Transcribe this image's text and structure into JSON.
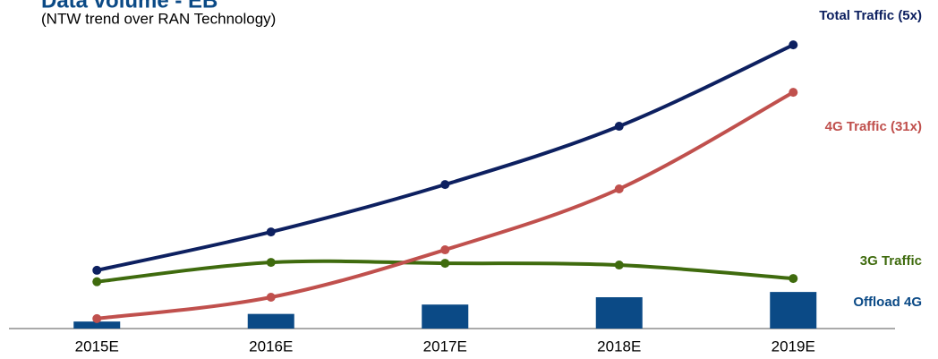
{
  "chart_data": {
    "type": "line",
    "title": "Data volume - EB",
    "subtitle": "(NTW trend over RAN Technology)",
    "categories": [
      "2015E",
      "2016E",
      "2017E",
      "2018E",
      "2019E"
    ],
    "ylim": [
      0,
      100
    ],
    "series": [
      {
        "name": "Offload 4G",
        "type": "bar",
        "color": "#0b4a86",
        "values": [
          2.4,
          5,
          8.2,
          10.7,
          12.5
        ]
      },
      {
        "name": "3G Traffic",
        "type": "line",
        "color": "#3f6b0e",
        "values": [
          16,
          22.6,
          22.3,
          21.7,
          17.1
        ]
      },
      {
        "name": "4G Traffic (31x)",
        "type": "line",
        "color": "#c0504d",
        "values": [
          3.4,
          10.7,
          26.9,
          47.7,
          80.7
        ]
      },
      {
        "name": "Total Traffic (5x)",
        "type": "line",
        "color": "#0d2060",
        "values": [
          19.9,
          33,
          49.2,
          69.1,
          96.9
        ]
      }
    ]
  }
}
